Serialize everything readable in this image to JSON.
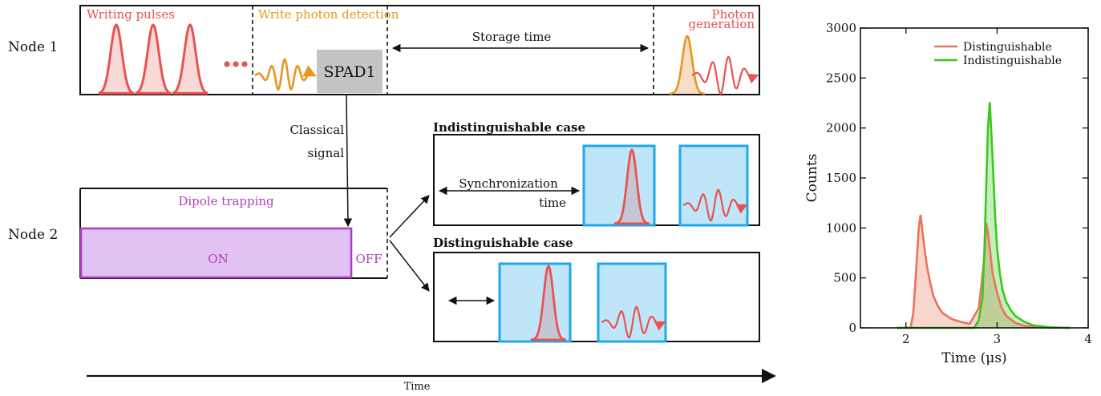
{
  "colors": {
    "red": "#e8534f",
    "orange": "#e8961e",
    "purple": "#b040c0",
    "purple_fill": "#e2c2f2",
    "blue": "#1fa8ea",
    "blue_fill": "#bfe6f8",
    "green": "#3cc81e",
    "salmon": "#e8745a",
    "gray": "#c4c4c4"
  },
  "diagram": {
    "node1_label": "Node 1",
    "node2_label": "Node 2",
    "writing_pulses": "Writing pulses",
    "write_photon_detection": "Write photon detection",
    "storage_time": "Storage time",
    "photon_generation_1": "Photon",
    "photon_generation_2": "generation",
    "spad": "SPAD1",
    "classical_1": "Classical",
    "classical_2": "signal",
    "dipole_trapping": "Dipole trapping",
    "on": "ON",
    "off": "OFF",
    "indist_case": "Indistinguishable case",
    "dist_case": "Distinguishable case",
    "sync_1": "Synchronization",
    "sync_2": "time",
    "time_axis": "Time"
  },
  "chart_data": {
    "type": "area",
    "xlabel": "Time (μs)",
    "ylabel": "Counts",
    "xlim": [
      1.5,
      4
    ],
    "ylim": [
      0,
      3000
    ],
    "xticks": [
      "2",
      "3",
      "4"
    ],
    "yticks": [
      "0",
      "500",
      "1000",
      "1500",
      "2000",
      "2500",
      "3000"
    ],
    "legend_position": "top-right",
    "series": [
      {
        "name": "Distinguishable",
        "color": "#e8745a",
        "x": [
          1.9,
          2.05,
          2.08,
          2.1,
          2.12,
          2.14,
          2.16,
          2.18,
          2.2,
          2.23,
          2.26,
          2.3,
          2.35,
          2.4,
          2.5,
          2.6,
          2.7,
          2.8,
          2.86,
          2.88,
          2.9,
          2.92,
          2.95,
          3.0,
          3.05,
          3.1,
          3.2,
          3.3,
          3.5,
          3.8
        ],
        "values": [
          0,
          0,
          150,
          420,
          700,
          1000,
          1130,
          980,
          820,
          620,
          480,
          320,
          220,
          150,
          90,
          60,
          40,
          200,
          700,
          1050,
          950,
          800,
          550,
          350,
          200,
          120,
          50,
          20,
          5,
          0
        ]
      },
      {
        "name": "Indistinguishable",
        "color": "#3cc81e",
        "x": [
          1.9,
          2.75,
          2.8,
          2.84,
          2.86,
          2.88,
          2.9,
          2.92,
          2.94,
          2.96,
          2.98,
          3.0,
          3.03,
          3.06,
          3.1,
          3.15,
          3.2,
          3.3,
          3.4,
          3.6,
          3.8
        ],
        "values": [
          0,
          0,
          80,
          300,
          750,
          1400,
          2000,
          2260,
          1900,
          1500,
          1100,
          800,
          550,
          380,
          260,
          180,
          120,
          60,
          25,
          5,
          0
        ]
      }
    ]
  }
}
